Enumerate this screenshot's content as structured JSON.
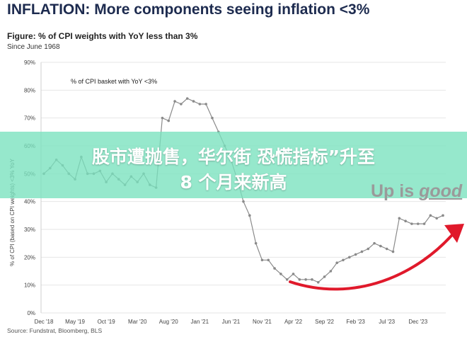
{
  "headline": "INFLATION: More components seeing inflation <3%",
  "figure_title": "Figure: % of CPI weights with YoY less than 3%",
  "figure_subtitle": "Since June 1968",
  "source": "Source: Fundstrat, Bloomberg, BLS",
  "banner": {
    "line1": "股市遭抛售，华尔街 恐慌指标”升至",
    "line2": "8 个月来新高"
  },
  "overlay": {
    "up_is": "Up is",
    "good": "good"
  },
  "colors": {
    "line": "#8a8a8a",
    "arrow": "#e0192b",
    "banner": "#78e1be",
    "headline": "#1d2b4f"
  },
  "chart_data": {
    "type": "line",
    "annotation": "% of CPI basket with YoY <3%",
    "ylabel": "% of CPI (based on CPI weights) <3% YoY",
    "ylim": [
      0,
      90
    ],
    "yticks": [
      "0%",
      "10%",
      "20%",
      "30%",
      "40%",
      "50%",
      "60%",
      "70%",
      "80%",
      "90%"
    ],
    "xtick_labels": [
      "Dec '18",
      "May '19",
      "Oct '19",
      "Mar '20",
      "Aug '20",
      "Jan '21",
      "Jun '21",
      "Nov '21",
      "Apr '22",
      "Sep '22",
      "Feb '23",
      "Jul '23",
      "Dec '23"
    ],
    "xtick_index": [
      0,
      5,
      10,
      15,
      20,
      25,
      30,
      35,
      40,
      45,
      50,
      55,
      60
    ],
    "series": [
      {
        "values": [
          50,
          52,
          55,
          53,
          50,
          48,
          56,
          50,
          50,
          51,
          47,
          50,
          48,
          46,
          49,
          47,
          50,
          46,
          45,
          70,
          69,
          76,
          75,
          77,
          76,
          75,
          75,
          70,
          65,
          60,
          55,
          48,
          40,
          35,
          25,
          19,
          19,
          16,
          14,
          12,
          14,
          12,
          12,
          12,
          11,
          13,
          15,
          18,
          19,
          20,
          21,
          22,
          23,
          25,
          24,
          23,
          22,
          34,
          33,
          32,
          32,
          32,
          35,
          34,
          35
        ]
      }
    ]
  }
}
